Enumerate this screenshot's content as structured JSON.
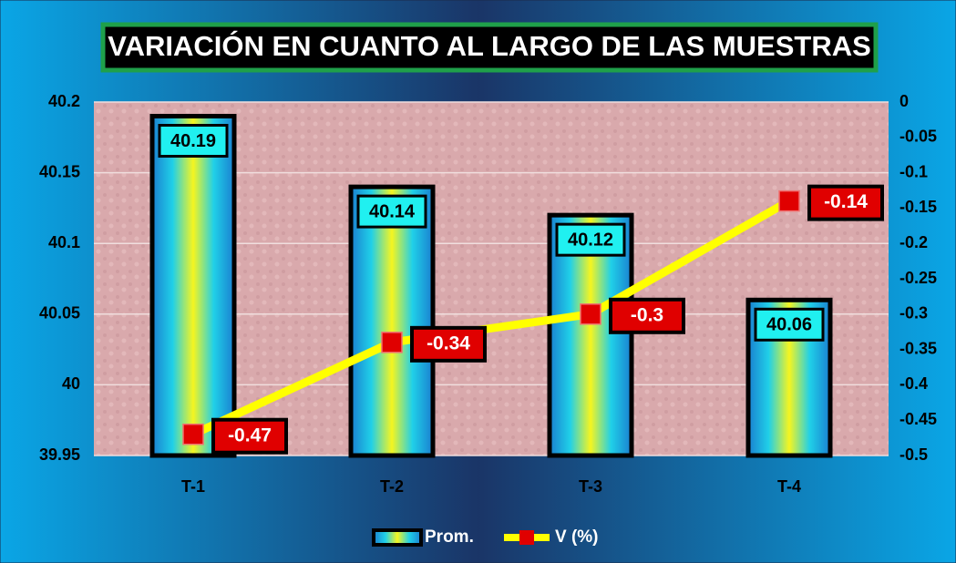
{
  "chart_data": {
    "type": "bar",
    "title": "VARIACIÓN EN CUANTO AL LARGO DE LAS MUESTRAS",
    "categories": [
      "T-1",
      "T-2",
      "T-3",
      "T-4"
    ],
    "series": [
      {
        "name": "Prom.",
        "color": "#1aa3e0",
        "values": [
          40.19,
          40.14,
          40.12,
          40.06
        ]
      },
      {
        "name": "V (%)",
        "color": "#ffff00",
        "marker_color": "#e00000",
        "axis": "y2",
        "values": [
          -0.47,
          -0.34,
          -0.3,
          -0.14
        ]
      }
    ],
    "ylim": [
      39.95,
      40.2
    ],
    "yticks": [
      39.95,
      40,
      40.05,
      40.1,
      40.15,
      40.2
    ],
    "y2lim": [
      -0.5,
      0
    ],
    "y2ticks": [
      0,
      -0.05,
      -0.1,
      -0.15,
      -0.2,
      -0.25,
      -0.3,
      -0.35,
      -0.4,
      -0.45,
      -0.5
    ],
    "grid": true,
    "legend": "bottom"
  }
}
